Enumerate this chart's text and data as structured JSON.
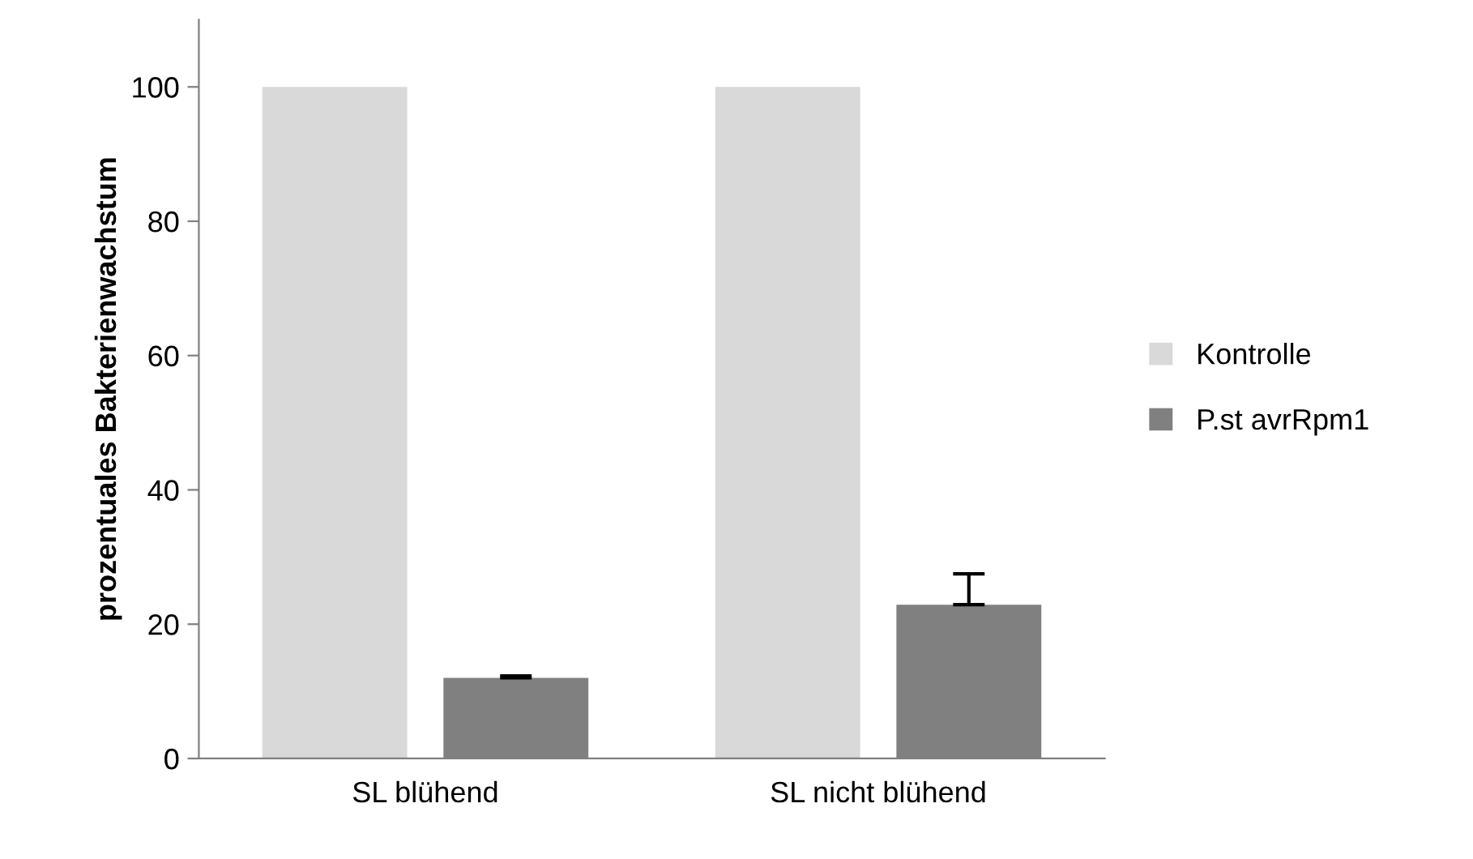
{
  "chart_data": {
    "type": "bar",
    "ylabel": "prozentuales Bakterienwachstum",
    "categories": [
      "SL blühend",
      "SL nicht blühend"
    ],
    "series": [
      {
        "name": "Kontrolle",
        "color": "#d9d9d9",
        "values": [
          100,
          100
        ]
      },
      {
        "name": "P.st avrRpm1",
        "color": "#808080",
        "values": [
          12,
          22.9
        ],
        "errors": [
          [
            12,
            12.3
          ],
          [
            22.9,
            27.5
          ]
        ]
      }
    ],
    "ylim": [
      0,
      110
    ],
    "yticks": [
      0,
      20,
      40,
      60,
      80,
      100
    ],
    "grid": false,
    "legend": "right"
  }
}
